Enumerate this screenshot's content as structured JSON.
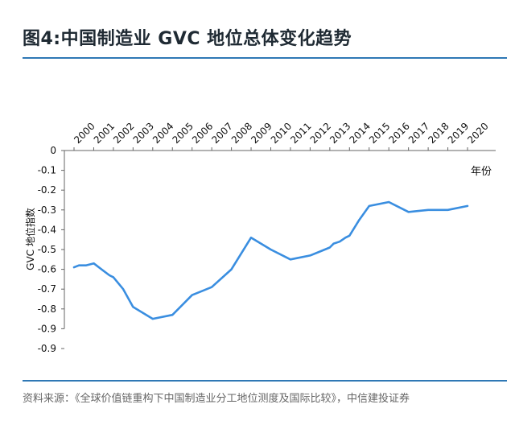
{
  "title": "图4:中国制造业 GVC 地位总体变化趋势",
  "source": "资料来源：《全球价值链重构下中国制造业分工地位测度及国际比较》，中信建投证券",
  "colors": {
    "line": "#3a8ee0",
    "rule": "#2f78b5",
    "axis": "#666666"
  },
  "chart_data": {
    "type": "line",
    "title": "",
    "xlabel": "年份",
    "ylabel": "GVC 地位指数",
    "x_ticks": [
      "2000",
      "2001",
      "2002",
      "2003",
      "2004",
      "2005",
      "2006",
      "2007",
      "2008",
      "2009",
      "2010",
      "2011",
      "2012",
      "2013",
      "2014",
      "2015",
      "2016",
      "2017",
      "2018",
      "2019",
      "2020"
    ],
    "y_ticks": [
      "0",
      "-0.1",
      "-0.2",
      "-0.3",
      "-0.4",
      "-0.5",
      "-0.6",
      "-0.7",
      "-0.8",
      "-0.9",
      "-0.9"
    ],
    "ylim": [
      0,
      -0.9
    ],
    "x_axis_position": "top",
    "grid": false,
    "series": [
      {
        "x": [
          2000,
          2000.25,
          2000.6,
          2001,
          2001.4,
          2001.8,
          2002,
          2002.5,
          2003,
          2004,
          2005,
          2006,
          2007,
          2008,
          2009,
          2010,
          2011,
          2012,
          2012.5,
          2013,
          2013.2,
          2013.5,
          2013.8,
          2014,
          2014.5,
          2015,
          2016,
          2017,
          2018,
          2019,
          2020
        ],
        "values": [
          -0.59,
          -0.58,
          -0.58,
          -0.57,
          -0.6,
          -0.63,
          -0.64,
          -0.7,
          -0.79,
          -0.85,
          -0.83,
          -0.73,
          -0.69,
          -0.6,
          -0.44,
          -0.5,
          -0.55,
          -0.53,
          -0.51,
          -0.49,
          -0.47,
          -0.46,
          -0.44,
          -0.43,
          -0.35,
          -0.28,
          -0.26,
          -0.31,
          -0.3,
          -0.3,
          -0.28
        ]
      }
    ]
  }
}
